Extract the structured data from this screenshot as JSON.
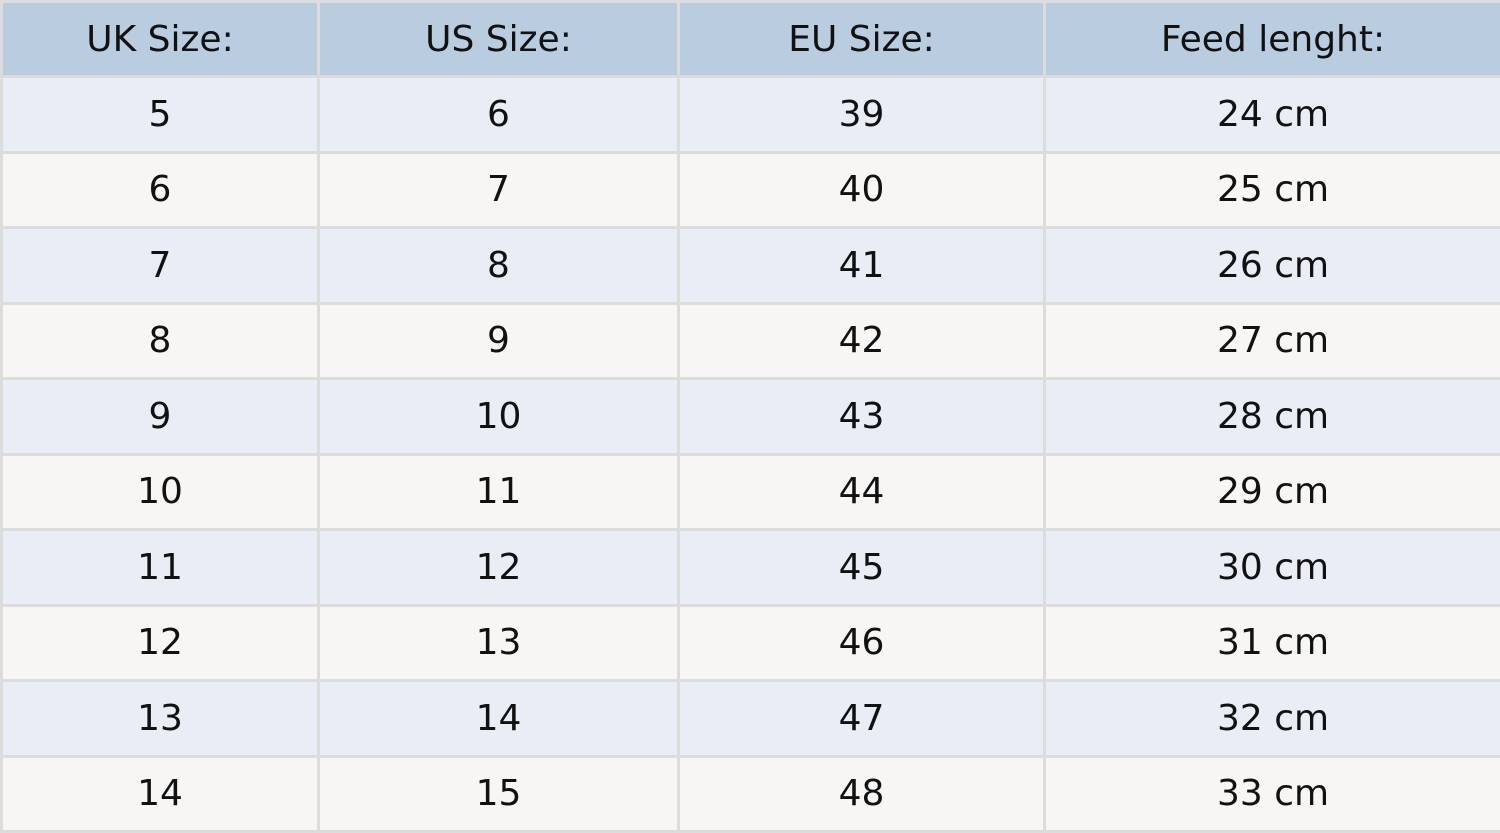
{
  "table": {
    "headers": [
      "UK Size:",
      "US Size:",
      "EU Size:",
      "Feed lenght:"
    ],
    "rows": [
      [
        "5",
        "6",
        "39",
        "24 cm"
      ],
      [
        "6",
        "7",
        "40",
        "25 cm"
      ],
      [
        "7",
        "8",
        "41",
        "26 cm"
      ],
      [
        "8",
        "9",
        "42",
        "27 cm"
      ],
      [
        "9",
        "10",
        "43",
        "28 cm"
      ],
      [
        "10",
        "11",
        "44",
        "29 cm"
      ],
      [
        "11",
        "12",
        "45",
        "30 cm"
      ],
      [
        "12",
        "13",
        "46",
        "31 cm"
      ],
      [
        "13",
        "14",
        "47",
        "32 cm"
      ],
      [
        "14",
        "15",
        "48",
        "33 cm"
      ]
    ]
  },
  "colors": {
    "header": "#b9cce0",
    "row_odd": "#e9eef6",
    "row_even": "#f8f6f4",
    "border": "#dcdcdc"
  }
}
